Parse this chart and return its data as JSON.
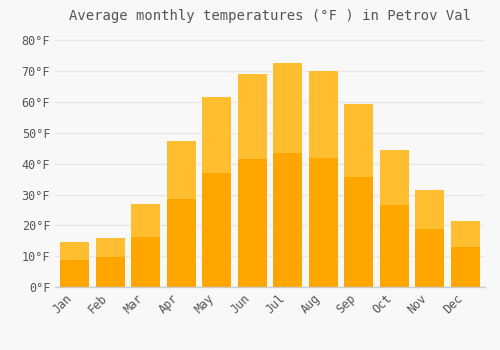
{
  "title": "Average monthly temperatures (°F ) in Petrov Val",
  "months": [
    "Jan",
    "Feb",
    "Mar",
    "Apr",
    "May",
    "Jun",
    "Jul",
    "Aug",
    "Sep",
    "Oct",
    "Nov",
    "Dec"
  ],
  "values": [
    14.5,
    16.0,
    27.0,
    47.5,
    61.5,
    69.0,
    72.5,
    70.0,
    59.5,
    44.5,
    31.5,
    21.5
  ],
  "bar_color_bottom": "#FFA500",
  "bar_color_top": "#FFD050",
  "background_color": "#F8F8F8",
  "grid_color": "#E8E8E8",
  "text_color": "#555555",
  "border_color": "#CCCCCC",
  "ylim": [
    0,
    84
  ],
  "yticks": [
    0,
    10,
    20,
    30,
    40,
    50,
    60,
    70,
    80
  ],
  "ytick_labels": [
    "0°F",
    "10°F",
    "20°F",
    "30°F",
    "40°F",
    "50°F",
    "60°F",
    "70°F",
    "80°F"
  ],
  "title_fontsize": 10,
  "tick_fontsize": 8.5
}
